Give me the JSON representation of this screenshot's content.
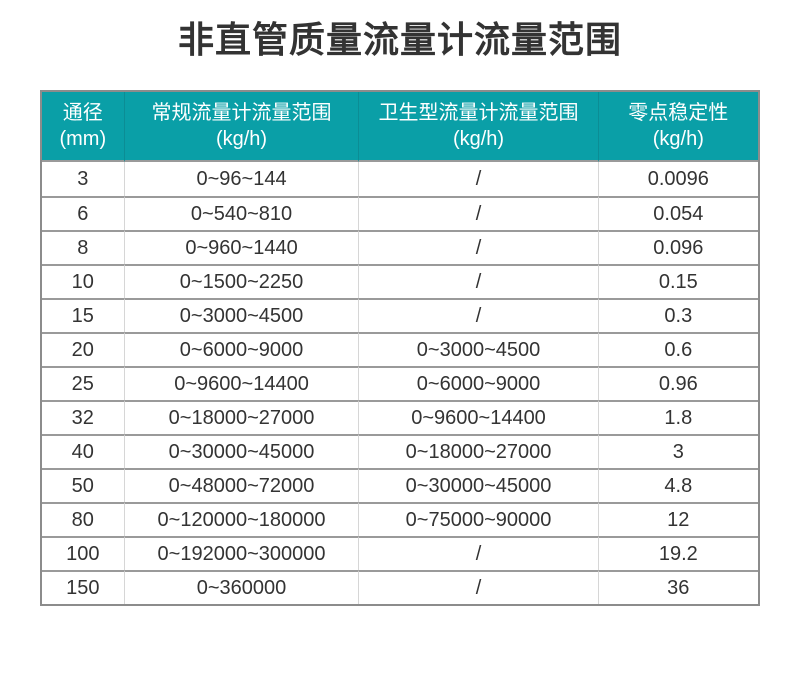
{
  "page_title": "非直管质量流量计流量范围",
  "colors": {
    "header_bg": "#0a9fa7",
    "header_text": "#ffffff",
    "header_divider": "#0b8d95",
    "title_color": "#333333",
    "body_text": "#333333",
    "border_outer": "#8c8c8c",
    "row_line": "#9a9a9a",
    "col_line": "#d6d6d6",
    "page_bg": "#ffffff"
  },
  "chart_data": {
    "type": "table",
    "title": "非直管质量流量计流量范围",
    "columns": [
      {
        "label": "通径",
        "unit": "(mm)"
      },
      {
        "label": "常规流量计流量范围",
        "unit": "(kg/h)"
      },
      {
        "label": "卫生型流量计流量范围",
        "unit": "(kg/h)"
      },
      {
        "label": "零点稳定性",
        "unit": "(kg/h)"
      }
    ],
    "empty_cell_marker": "/",
    "rows": [
      [
        "3",
        "0~96~144",
        "/",
        "0.0096"
      ],
      [
        "6",
        "0~540~810",
        "/",
        "0.054"
      ],
      [
        "8",
        "0~960~1440",
        "/",
        "0.096"
      ],
      [
        "10",
        "0~1500~2250",
        "/",
        "0.15"
      ],
      [
        "15",
        "0~3000~4500",
        "/",
        "0.3"
      ],
      [
        "20",
        "0~6000~9000",
        "0~3000~4500",
        "0.6"
      ],
      [
        "25",
        "0~9600~14400",
        "0~6000~9000",
        "0.96"
      ],
      [
        "32",
        "0~18000~27000",
        "0~9600~14400",
        "1.8"
      ],
      [
        "40",
        "0~30000~45000",
        "0~18000~27000",
        "3"
      ],
      [
        "50",
        "0~48000~72000",
        "0~30000~45000",
        "4.8"
      ],
      [
        "80",
        "0~120000~180000",
        "0~75000~90000",
        "12"
      ],
      [
        "100",
        "0~192000~300000",
        "/",
        "19.2"
      ],
      [
        "150",
        "0~360000",
        "/",
        "36"
      ]
    ]
  }
}
